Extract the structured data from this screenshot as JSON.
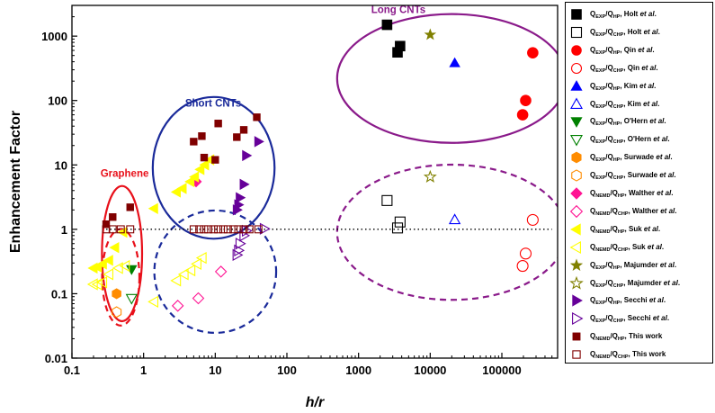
{
  "chart_data": {
    "type": "scatter",
    "title": "",
    "xlabel": "h/r",
    "ylabel": "Enhancement Factor",
    "xscale": "log",
    "yscale": "log",
    "xlim": [
      0.1,
      600000
    ],
    "ylim": [
      0.01,
      3000
    ],
    "x_ticks": [
      0.1,
      1,
      10,
      100,
      1000,
      10000,
      100000
    ],
    "x_tick_labels": [
      "0.1",
      "1",
      "10",
      "100",
      "1000",
      "10000",
      "100000"
    ],
    "y_ticks": [
      0.01,
      0.1,
      1,
      10,
      100,
      1000
    ],
    "y_tick_labels": [
      "0.01",
      "0.1",
      "1",
      "10",
      "100",
      "1000"
    ],
    "grid": false,
    "legend_position": "right",
    "reference_line": {
      "y": 1,
      "style": "dotted",
      "x_range": [
        0.3,
        500000
      ]
    },
    "series": [
      {
        "legend_main": "Q",
        "sub1": "EXP",
        "sep": "/Q",
        "sub2": "HP",
        "author": "Holt",
        "etal": true,
        "marker": "square",
        "filled": true,
        "color": "#000000",
        "points": [
          [
            2500,
            1500
          ],
          [
            3500,
            560
          ],
          [
            3800,
            700
          ]
        ]
      },
      {
        "legend_main": "Q",
        "sub1": "EXP",
        "sep": "/Q",
        "sub2": "CHP",
        "author": "Holt",
        "etal": true,
        "marker": "square",
        "filled": false,
        "color": "#000000",
        "points": [
          [
            2500,
            2.8
          ],
          [
            3500,
            1.05
          ],
          [
            3800,
            1.3
          ]
        ]
      },
      {
        "legend_main": "Q",
        "sub1": "EXP",
        "sep": "/Q",
        "sub2": "HP",
        "author": "Qin",
        "etal": true,
        "marker": "circle",
        "filled": true,
        "color": "#ff0000",
        "points": [
          [
            270000,
            550
          ],
          [
            215000,
            100
          ],
          [
            195000,
            60
          ]
        ]
      },
      {
        "legend_main": "Q",
        "sub1": "EXP",
        "sep": "/Q",
        "sub2": "CHP",
        "author": "Qin",
        "etal": true,
        "marker": "circle",
        "filled": false,
        "color": "#ff0000",
        "points": [
          [
            270000,
            1.4
          ],
          [
            215000,
            0.42
          ],
          [
            195000,
            0.27
          ]
        ]
      },
      {
        "legend_main": "Q",
        "sub1": "EXP",
        "sep": "/Q",
        "sub2": "HP",
        "author": "Kim",
        "etal": true,
        "marker": "triangle-up",
        "filled": true,
        "color": "#0000ff",
        "points": [
          [
            22000,
            380
          ]
        ]
      },
      {
        "legend_main": "Q",
        "sub1": "EXP",
        "sep": "/Q",
        "sub2": "CHP",
        "author": "Kim",
        "etal": true,
        "marker": "triangle-up",
        "filled": false,
        "color": "#0000ff",
        "points": [
          [
            22000,
            1.4
          ]
        ]
      },
      {
        "legend_main": "Q",
        "sub1": "EXP",
        "sep": "/Q",
        "sub2": "HP",
        "author": "O'Hern",
        "etal": true,
        "marker": "triangle-down",
        "filled": true,
        "color": "#008000",
        "points": [
          [
            0.68,
            0.24
          ]
        ]
      },
      {
        "legend_main": "Q",
        "sub1": "EXP",
        "sep": "/Q",
        "sub2": "CHP",
        "author": "O'Hern",
        "etal": true,
        "marker": "triangle-down",
        "filled": false,
        "color": "#008000",
        "points": [
          [
            0.68,
            0.085
          ]
        ]
      },
      {
        "legend_main": "Q",
        "sub1": "EXP",
        "sep": "/Q",
        "sub2": "HP",
        "author": "Surwade",
        "etal": true,
        "marker": "hexagon",
        "filled": true,
        "color": "#ff8c00",
        "points": [
          [
            0.42,
            0.1
          ]
        ]
      },
      {
        "legend_main": "Q",
        "sub1": "EXP",
        "sep": "/Q",
        "sub2": "CHP",
        "author": "Surwade",
        "etal": true,
        "marker": "hexagon",
        "filled": false,
        "color": "#ff8c00",
        "points": [
          [
            0.42,
            0.052
          ]
        ]
      },
      {
        "legend_main": "Q",
        "sub1": "NEMD",
        "sep": "/Q",
        "sub2": "HP",
        "author": "Walther",
        "etal": true,
        "marker": "diamond",
        "filled": true,
        "color": "#ff1493",
        "points": [
          [
            5.4,
            5.5
          ]
        ]
      },
      {
        "legend_main": "Q",
        "sub1": "NEMD",
        "sep": "/Q",
        "sub2": "CHP",
        "author": "Walther",
        "etal": true,
        "marker": "diamond",
        "filled": false,
        "color": "#ff1493",
        "points": [
          [
            3,
            0.065
          ],
          [
            5.8,
            0.085
          ],
          [
            12,
            0.22
          ]
        ]
      },
      {
        "legend_main": "Q",
        "sub1": "NEMD",
        "sep": "/Q",
        "sub2": "HP",
        "author": "Suk",
        "etal": true,
        "marker": "triangle-left",
        "filled": true,
        "color": "#ffff00",
        "points": [
          [
            0.2,
            0.25
          ],
          [
            0.23,
            0.26
          ],
          [
            0.27,
            0.29
          ],
          [
            0.33,
            0.33
          ],
          [
            0.4,
            0.52
          ],
          [
            0.52,
            0.9
          ],
          [
            1.4,
            2.1
          ],
          [
            2.9,
            3.8
          ],
          [
            3.5,
            4.3
          ],
          [
            4.5,
            5.5
          ],
          [
            5.2,
            6.5
          ],
          [
            6.2,
            8.5
          ],
          [
            7.2,
            10
          ],
          [
            8.5,
            12
          ]
        ]
      },
      {
        "legend_main": "Q",
        "sub1": "NEMD",
        "sep": "/Q",
        "sub2": "CHP",
        "author": "Suk",
        "etal": true,
        "marker": "triangle-left",
        "filled": false,
        "color": "#ffff00",
        "points": [
          [
            0.2,
            0.14
          ],
          [
            0.23,
            0.14
          ],
          [
            0.27,
            0.15
          ],
          [
            0.33,
            0.2
          ],
          [
            0.45,
            0.25
          ],
          [
            0.56,
            0.27
          ],
          [
            1.4,
            0.075
          ],
          [
            2.9,
            0.16
          ],
          [
            3.7,
            0.2
          ],
          [
            4.6,
            0.23
          ],
          [
            5.6,
            0.29
          ],
          [
            6.6,
            0.36
          ]
        ]
      },
      {
        "legend_main": "Q",
        "sub1": "EXP",
        "sep": "/Q",
        "sub2": "HP",
        "author": "Majumder",
        "etal": true,
        "marker": "star",
        "filled": true,
        "color": "#808000",
        "points": [
          [
            10000,
            1050
          ]
        ]
      },
      {
        "legend_main": "Q",
        "sub1": "EXP",
        "sep": "/Q",
        "sub2": "CHP",
        "author": "Majumder",
        "etal": true,
        "marker": "star",
        "filled": false,
        "color": "#808000",
        "points": [
          [
            10000,
            6.5
          ]
        ]
      },
      {
        "legend_main": "Q",
        "sub1": "EXP",
        "sep": "/Q",
        "sub2": "HP",
        "author": "Secchi",
        "etal": true,
        "marker": "triangle-right",
        "filled": true,
        "color": "#660099",
        "points": [
          [
            20,
            2
          ],
          [
            21,
            2.4
          ],
          [
            22,
            3.1
          ],
          [
            25,
            5
          ],
          [
            27,
            14
          ],
          [
            40,
            23
          ]
        ]
      },
      {
        "legend_main": "Q",
        "sub1": "EXP",
        "sep": "/Q",
        "sub2": "CHP",
        "author": "Secchi",
        "etal": true,
        "marker": "triangle-right",
        "filled": false,
        "color": "#660099",
        "points": [
          [
            20,
            0.4
          ],
          [
            21,
            0.47
          ],
          [
            22,
            0.6
          ],
          [
            25,
            0.8
          ],
          [
            27,
            0.95
          ],
          [
            48,
            1.02
          ]
        ]
      },
      {
        "legend_main": "Q",
        "sub1": "NEMD",
        "sep": "/Q",
        "sub2": "HP",
        "author": "This work",
        "etal": false,
        "marker": "square-small",
        "filled": true,
        "color": "#800000",
        "points": [
          [
            0.3,
            1.2
          ],
          [
            0.37,
            1.55
          ],
          [
            0.65,
            2.2
          ],
          [
            5,
            23
          ],
          [
            6.5,
            28
          ],
          [
            11,
            44
          ],
          [
            20,
            27
          ],
          [
            25,
            35
          ],
          [
            38,
            55
          ],
          [
            7,
            13
          ],
          [
            10,
            12
          ]
        ]
      },
      {
        "legend_main": "Q",
        "sub1": "NEMD",
        "sep": "/Q",
        "sub2": "CHP",
        "author": "This work",
        "etal": false,
        "marker": "square-small",
        "filled": false,
        "color": "#800000",
        "points": [
          [
            0.3,
            1
          ],
          [
            0.37,
            1
          ],
          [
            0.48,
            1
          ],
          [
            0.65,
            1
          ],
          [
            5,
            1
          ],
          [
            6,
            1
          ],
          [
            7,
            1
          ],
          [
            8,
            1
          ],
          [
            9.5,
            1
          ],
          [
            11,
            1
          ],
          [
            13,
            1
          ],
          [
            15,
            1
          ],
          [
            18,
            1
          ],
          [
            21,
            1
          ],
          [
            25,
            1
          ],
          [
            30,
            1
          ],
          [
            40,
            1
          ]
        ]
      }
    ],
    "annotations": [
      {
        "text": "Graphene",
        "color": "#e8101a",
        "at": [
          0.25,
          6.5
        ]
      },
      {
        "text": "Short CNTs",
        "color": "#1a2a9a",
        "at": [
          3.8,
          80
        ]
      },
      {
        "text": "Long CNTs",
        "color": "#8a1a8a",
        "at": [
          1500,
          2300
        ]
      }
    ],
    "regions": [
      {
        "label": "Graphene HP",
        "style": "solid",
        "color": "#e8101a",
        "cx": 0.5,
        "cy": 0.42,
        "log_rx": 0.28,
        "log_ry": 1.05
      },
      {
        "label": "Graphene CHP",
        "style": "dashed",
        "color": "#e8101a",
        "cx": 0.48,
        "cy": 0.18,
        "log_rx": 0.26,
        "log_ry": 0.75
      },
      {
        "label": "Short CNTs HP",
        "style": "solid",
        "color": "#1a2a9a",
        "cx": 9.5,
        "cy": 9,
        "log_rx": 0.85,
        "log_ry": 1.1
      },
      {
        "label": "Short CNTs CHP",
        "style": "dashed",
        "color": "#1a2a9a",
        "cx": 10,
        "cy": 0.22,
        "log_rx": 0.85,
        "log_ry": 0.95
      },
      {
        "label": "Long CNTs HP",
        "style": "solid",
        "color": "#8a1a8a",
        "cx": 20000,
        "cy": 220,
        "log_rx": 1.6,
        "log_ry": 1.0
      },
      {
        "label": "Long CNTs CHP",
        "style": "dashed",
        "color": "#8a1a8a",
        "cx": 20000,
        "cy": 0.9,
        "log_rx": 1.6,
        "log_ry": 1.05
      }
    ]
  }
}
